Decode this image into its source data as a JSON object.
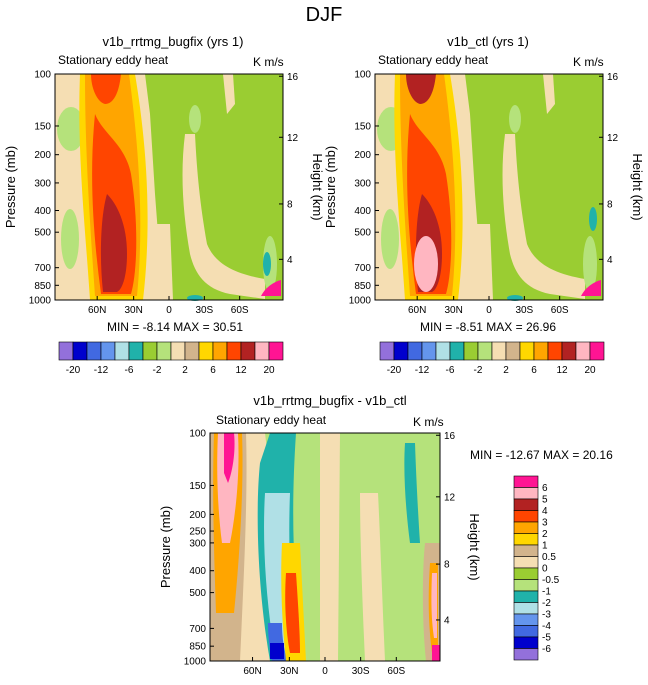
{
  "figure_title": "DJF",
  "chart_data": [
    {
      "type": "heatmap",
      "title": "v1b_rrtmg_bugfix (yrs 1)",
      "subtitle_left": "Stationary eddy heat",
      "units": "K m/s",
      "ylabel": "Pressure (mb)",
      "ylabel_right": "Height (km)",
      "xticks": [
        "60N",
        "30N",
        "0",
        "30S",
        "60S"
      ],
      "yticks": [
        "100",
        "150",
        "200",
        "300",
        "400",
        "500",
        "700",
        "850",
        "1000"
      ],
      "yticks_right": [
        "16",
        "12",
        "8",
        "4"
      ],
      "stats": "MIN = -8.14  MAX = 30.51",
      "colorbar_levels": [
        "-20",
        "-12",
        "-6",
        "-2",
        "2",
        "6",
        "12",
        "20"
      ]
    },
    {
      "type": "heatmap",
      "title": "v1b_ctl (yrs 1)",
      "subtitle_left": "Stationary eddy heat",
      "units": "K m/s",
      "ylabel": "Pressure (mb)",
      "ylabel_right": "Height (km)",
      "xticks": [
        "60N",
        "30N",
        "0",
        "30S",
        "60S"
      ],
      "yticks": [
        "100",
        "150",
        "200",
        "300",
        "400",
        "500",
        "700",
        "850",
        "1000"
      ],
      "yticks_right": [
        "16",
        "12",
        "8",
        "4"
      ],
      "stats": "MIN = -8.51  MAX = 26.96",
      "colorbar_levels": [
        "-20",
        "-12",
        "-6",
        "-2",
        "2",
        "6",
        "12",
        "20"
      ]
    },
    {
      "type": "heatmap",
      "title": "v1b_rrtmg_bugfix - v1b_ctl",
      "subtitle_left": "Stationary eddy heat",
      "units": "K m/s",
      "ylabel": "Pressure (mb)",
      "ylabel_right": "Height (km)",
      "xticks": [
        "60N",
        "30N",
        "0",
        "30S",
        "60S"
      ],
      "yticks": [
        "100",
        "150",
        "200",
        "250",
        "300",
        "400",
        "500",
        "700",
        "850",
        "1000"
      ],
      "yticks_right": [
        "16",
        "12",
        "8",
        "4"
      ],
      "stats": "MIN = -12.67  MAX = 20.16",
      "colorbar_levels": [
        "6",
        "5",
        "4",
        "3",
        "2",
        "1",
        "0.5",
        "0",
        "-0.5",
        "-1",
        "-2",
        "-3",
        "-4",
        "-5",
        "-6"
      ]
    }
  ],
  "palette_top": [
    "#9370db",
    "#0000cd",
    "#4169e1",
    "#6495ed",
    "#b0e0e6",
    "#20b2aa",
    "#9acd32",
    "#b5e27b",
    "#f5deb3",
    "#d2b48c",
    "#ffd700",
    "#ffa500",
    "#ff4500",
    "#b22222",
    "#ffb6c1",
    "#ff1493"
  ],
  "palette_diff": [
    "#ff1493",
    "#ffb6c1",
    "#b22222",
    "#ff4500",
    "#ffa500",
    "#ffd700",
    "#d2b48c",
    "#f5deb3",
    "#9acd32",
    "#b5e27b",
    "#20b2aa",
    "#b0e0e6",
    "#6495ed",
    "#4169e1",
    "#0000cd",
    "#9370db"
  ]
}
